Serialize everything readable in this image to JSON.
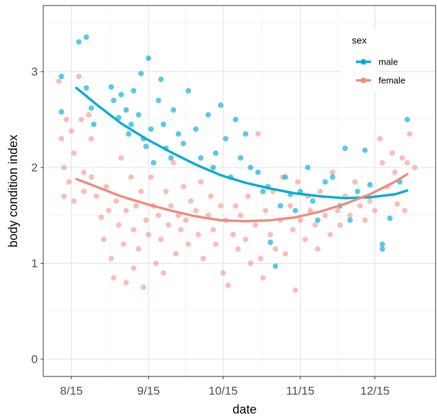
{
  "chart_data": {
    "type": "scatter",
    "xlabel": "date",
    "ylabel": "body condition index",
    "xlim": [
      -11.3,
      146.4
    ],
    "ylim": [
      -0.18,
      3.69
    ],
    "xticks": [
      {
        "value": 0,
        "label": "8/15"
      },
      {
        "value": 31,
        "label": "9/15"
      },
      {
        "value": 61,
        "label": "10/15"
      },
      {
        "value": 92,
        "label": "11/15"
      },
      {
        "value": 122,
        "label": "12/15"
      }
    ],
    "yticks": [
      0,
      1,
      2,
      3
    ],
    "grid": true,
    "legend_title": "sex",
    "legend_position": "top-right",
    "series": [
      {
        "name": "male",
        "color": "#00acd6",
        "x": [
          -4,
          -4,
          3,
          6,
          6,
          8,
          9,
          16,
          17,
          19,
          20,
          22,
          23,
          24,
          25,
          27,
          28,
          29,
          30,
          31,
          32,
          33,
          35,
          36,
          37,
          38,
          40,
          41,
          43,
          45,
          47,
          50,
          52,
          55,
          57,
          58,
          60,
          62,
          64,
          66,
          68,
          70,
          72,
          75,
          77,
          79,
          80,
          82,
          84,
          86,
          88,
          90,
          92,
          95,
          97,
          99,
          102,
          105,
          108,
          110,
          112,
          115,
          118,
          120,
          125,
          125,
          128,
          132,
          135
        ],
        "values": [
          2.95,
          2.58,
          3.31,
          3.36,
          2.83,
          2.62,
          2.45,
          2.84,
          2.7,
          2.52,
          2.76,
          2.6,
          2.35,
          2.45,
          2.8,
          2.55,
          2.98,
          2.3,
          2.22,
          3.14,
          2.4,
          2.05,
          2.7,
          2.92,
          2.45,
          2.2,
          2.1,
          2.6,
          2.35,
          2.25,
          2.8,
          2.4,
          2.1,
          2.55,
          2.0,
          2.15,
          2.65,
          2.3,
          1.9,
          2.5,
          2.1,
          2.35,
          2.0,
          1.95,
          1.75,
          1.8,
          1.22,
          0.97,
          1.6,
          1.9,
          1.72,
          1.55,
          1.75,
          2.0,
          1.65,
          1.45,
          1.85,
          1.9,
          1.6,
          2.2,
          1.45,
          1.75,
          2.18,
          1.82,
          1.2,
          1.15,
          1.47,
          1.85,
          2.5
        ],
        "fit_x": [
          2,
          10,
          20,
          30,
          40,
          50,
          60,
          70,
          80,
          90,
          100,
          110,
          120,
          130,
          135
        ],
        "fit_values": [
          2.83,
          2.66,
          2.46,
          2.3,
          2.16,
          2.03,
          1.92,
          1.84,
          1.78,
          1.73,
          1.7,
          1.68,
          1.69,
          1.72,
          1.76
        ]
      },
      {
        "name": "female",
        "color": "#f08a7e",
        "x": [
          -5,
          -4,
          -3,
          -3,
          -2,
          -1,
          0,
          1,
          1,
          3,
          4,
          5,
          5,
          7,
          8,
          8,
          10,
          12,
          13,
          14,
          15,
          16,
          17,
          18,
          19,
          20,
          21,
          22,
          22,
          24,
          25,
          25,
          26,
          27,
          28,
          29,
          30,
          31,
          32,
          33,
          34,
          35,
          36,
          37,
          38,
          39,
          40,
          41,
          42,
          43,
          44,
          45,
          46,
          47,
          48,
          50,
          51,
          52,
          53,
          55,
          56,
          57,
          58,
          60,
          61,
          62,
          63,
          65,
          66,
          67,
          68,
          70,
          71,
          72,
          74,
          75,
          76,
          77,
          78,
          80,
          81,
          82,
          84,
          85,
          86,
          88,
          89,
          90,
          91,
          92,
          94,
          95,
          96,
          98,
          99,
          100,
          102,
          104,
          105,
          107,
          108,
          110,
          112,
          114,
          116,
          118,
          120,
          122,
          124,
          125,
          127,
          129,
          130,
          131,
          133,
          134,
          135,
          136,
          138
        ],
        "values": [
          2.9,
          2.3,
          2.0,
          1.7,
          2.5,
          1.85,
          2.38,
          2.15,
          1.65,
          2.95,
          2.5,
          1.95,
          1.75,
          2.55,
          2.3,
          1.9,
          1.7,
          1.48,
          1.25,
          1.8,
          1.55,
          1.05,
          0.85,
          1.65,
          1.4,
          2.1,
          1.2,
          0.8,
          1.55,
          1.9,
          1.35,
          0.95,
          1.6,
          1.15,
          1.75,
          0.75,
          1.45,
          1.3,
          1.9,
          1.6,
          1.0,
          1.5,
          1.25,
          0.9,
          1.75,
          1.4,
          1.6,
          2.05,
          1.1,
          1.5,
          1.35,
          1.8,
          1.45,
          1.2,
          1.65,
          1.55,
          1.3,
          1.85,
          1.05,
          1.5,
          1.7,
          1.35,
          1.2,
          1.6,
          0.9,
          1.45,
          0.77,
          1.3,
          1.6,
          1.15,
          1.5,
          1.25,
          1.7,
          1.0,
          1.4,
          2.35,
          1.05,
          0.85,
          1.55,
          1.3,
          1.75,
          1.15,
          1.45,
          1.9,
          1.1,
          1.6,
          1.35,
          0.72,
          1.85,
          1.45,
          1.25,
          1.7,
          1.55,
          1.4,
          1.15,
          1.75,
          1.5,
          1.3,
          1.95,
          1.55,
          1.4,
          1.7,
          1.5,
          1.85,
          1.6,
          1.45,
          1.65,
          1.55,
          2.3,
          2.05,
          1.8,
          2.15,
          1.95,
          1.62,
          2.1,
          1.55,
          2.05,
          2.35,
          2.0
        ],
        "fit_x": [
          2,
          10,
          20,
          30,
          40,
          50,
          60,
          70,
          80,
          90,
          100,
          110,
          120,
          130,
          135
        ],
        "fit_values": [
          1.88,
          1.8,
          1.7,
          1.62,
          1.55,
          1.49,
          1.45,
          1.44,
          1.45,
          1.48,
          1.54,
          1.62,
          1.72,
          1.85,
          1.93
        ]
      }
    ]
  }
}
